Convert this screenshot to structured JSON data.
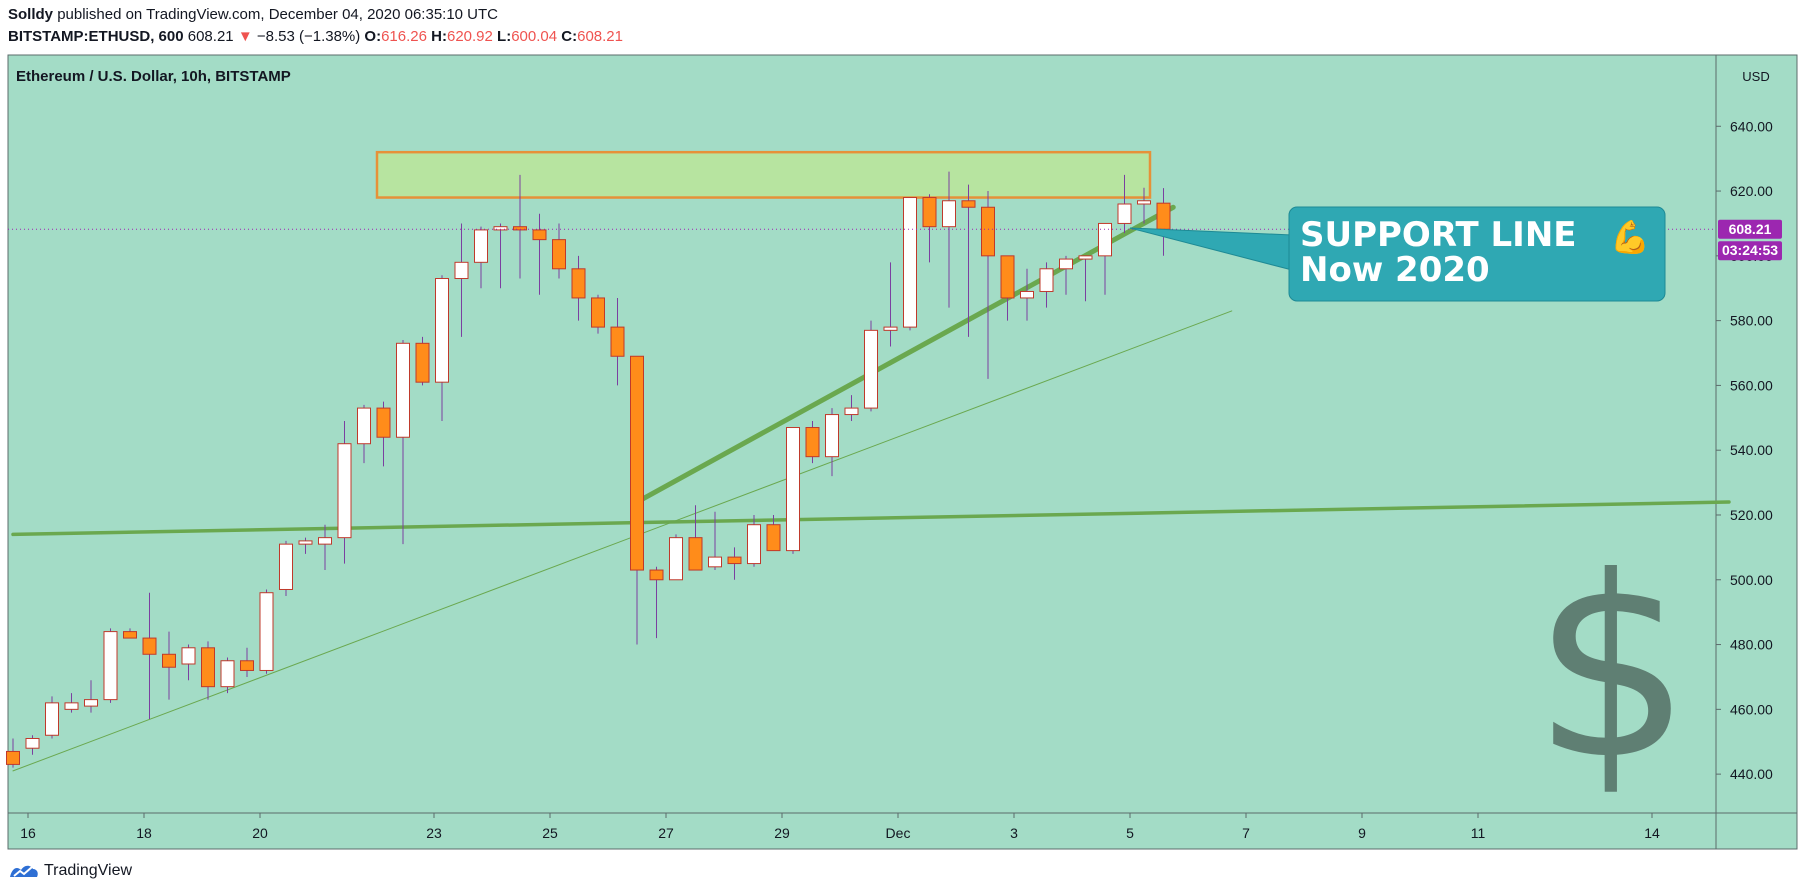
{
  "header": {
    "author": "Solldy",
    "published_text": "published on TradingView.com, December 04, 2020 06:35:10 UTC",
    "symbol": "BITSTAMP:ETHUSD, 600",
    "last": "608.21",
    "change": "−8.53 (−1.38%)",
    "o_label": "O:",
    "o": "616.26",
    "h_label": "H:",
    "h": "620.92",
    "l_label": "L:",
    "l": "600.04",
    "c_label": "C:",
    "c": "608.21"
  },
  "chart_title": "Ethereum / U.S. Dollar, 10h, BITSTAMP",
  "currency": "USD",
  "price_tag": "608.21",
  "countdown_tag": "03:24:53",
  "callout": {
    "line1": "SUPPORT LINE",
    "line2": "Now 2020",
    "emoji": "💪"
  },
  "dollar_sign": "$",
  "footer_brand": "TradingView",
  "colors": {
    "background": "#a3dcc6",
    "up_body": "#ffffff",
    "down_body": "#ff8c1a",
    "wick": "#7b3fa0",
    "candle_border": "#c0392b",
    "trendline": "#6aa84f",
    "zone_fill": "#b7e4a0",
    "zone_border": "#e69138",
    "callout": "#2fa8b3",
    "price_tag": "#9c27b0"
  },
  "chart_data": {
    "type": "candlestick",
    "title": "Ethereum / U.S. Dollar, 10h, BITSTAMP",
    "ylabel": "USD",
    "ylim": [
      428,
      662
    ],
    "y_ticks": [
      "640.00",
      "620.00",
      "600.00",
      "580.00",
      "560.00",
      "540.00",
      "520.00",
      "500.00",
      "480.00",
      "460.00",
      "440.00"
    ],
    "y_tick_values": [
      640,
      620,
      600,
      580,
      560,
      540,
      520,
      500,
      480,
      460,
      440
    ],
    "x_tick_labels": [
      "16",
      "18",
      "20",
      "23",
      "25",
      "27",
      "29",
      "Dec",
      "3",
      "5",
      "7",
      "9",
      "11",
      "14"
    ],
    "x_tick_dates": [
      "2020-11-16",
      "2020-11-18",
      "2020-11-20",
      "2020-11-23",
      "2020-11-25",
      "2020-11-27",
      "2020-11-29",
      "2020-12-01",
      "2020-12-03",
      "2020-12-05",
      "2020-12-07",
      "2020-12-09",
      "2020-12-11",
      "2020-12-14"
    ],
    "candles": [
      [
        447,
        451,
        442,
        443
      ],
      [
        448,
        452,
        446,
        451
      ],
      [
        452,
        464,
        451,
        462
      ],
      [
        460,
        465,
        459,
        462
      ],
      [
        461,
        469,
        459,
        463
      ],
      [
        463,
        485,
        462,
        484
      ],
      [
        484,
        485,
        482,
        482
      ],
      [
        482,
        496,
        457,
        477
      ],
      [
        477,
        484,
        463,
        473
      ],
      [
        474,
        480,
        469,
        479
      ],
      [
        479,
        481,
        463,
        467
      ],
      [
        467,
        476,
        465,
        475
      ],
      [
        475,
        479,
        470,
        472
      ],
      [
        472,
        497,
        471,
        496
      ],
      [
        497,
        512,
        495,
        511
      ],
      [
        511,
        513,
        508,
        512
      ],
      [
        511,
        517,
        503,
        513
      ],
      [
        513,
        549,
        505,
        542
      ],
      [
        542,
        554,
        536,
        553
      ],
      [
        553,
        555,
        535,
        544
      ],
      [
        544,
        574,
        511,
        573
      ],
      [
        573,
        575,
        560,
        561
      ],
      [
        561,
        594,
        549,
        593
      ],
      [
        593,
        610,
        575,
        598
      ],
      [
        598,
        609,
        590,
        608
      ],
      [
        608,
        610,
        590,
        609
      ],
      [
        609,
        625,
        593,
        608
      ],
      [
        608,
        613,
        588,
        605
      ],
      [
        605,
        610,
        593,
        596
      ],
      [
        596,
        600,
        580,
        587
      ],
      [
        587,
        588,
        576,
        578
      ],
      [
        578,
        587,
        560,
        569
      ],
      [
        569,
        569,
        480,
        503
      ],
      [
        503,
        504,
        482,
        500
      ],
      [
        500,
        514,
        500,
        513
      ],
      [
        513,
        523,
        504,
        503
      ],
      [
        504,
        521,
        503,
        507
      ],
      [
        507,
        510,
        500,
        505
      ],
      [
        505,
        520,
        504,
        517
      ],
      [
        517,
        520,
        509,
        509
      ],
      [
        509,
        547,
        508,
        547
      ],
      [
        547,
        549,
        536,
        538
      ],
      [
        538,
        553,
        532,
        551
      ],
      [
        551,
        557,
        549,
        553
      ],
      [
        553,
        580,
        552,
        577
      ],
      [
        577,
        598,
        572,
        578
      ],
      [
        578,
        618,
        577,
        618
      ],
      [
        618,
        619,
        598,
        609
      ],
      [
        609,
        626,
        584,
        617
      ],
      [
        617,
        622,
        575,
        615
      ],
      [
        615,
        620,
        562,
        600
      ],
      [
        600,
        600,
        580,
        587
      ],
      [
        587,
        596,
        580,
        589
      ],
      [
        589,
        598,
        584,
        596
      ],
      [
        596,
        600,
        588,
        599
      ],
      [
        599,
        599,
        586,
        600
      ],
      [
        600,
        610,
        588,
        610
      ],
      [
        610,
        625,
        607,
        616
      ],
      [
        616,
        621,
        610,
        617
      ],
      [
        616.26,
        620.92,
        600.04,
        608.21
      ]
    ],
    "resistance_zone": {
      "low": 618,
      "high": 632
    },
    "trendlines": [
      {
        "name": "",
        "from": [
          32,
          524
        ],
        "to": [
          59.5,
          615
        ]
      },
      {
        "name": "",
        "from": [
          0,
          441
        ],
        "to": [
          62.5,
          583
        ]
      },
      {
        "name": "",
        "from": [
          0,
          514
        ],
        "to": [
          88,
          524
        ]
      }
    ],
    "last_price": 608.21
  }
}
